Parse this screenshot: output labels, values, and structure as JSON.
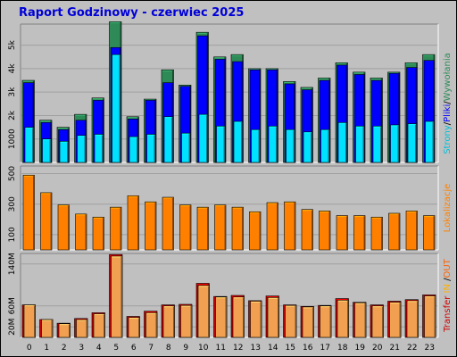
{
  "title": "Raport Godzinowy -  czerwiec 2025",
  "colors": {
    "page_bg": "#c0c0c0",
    "title": "#0000d8",
    "hits": "#2e8b57",
    "files": "#0000ff",
    "pages": "#00e0ff",
    "visits": "#ff8000",
    "kb_in": "#ffb000",
    "kb_out": "#ff6000",
    "transfer": "#cc0000"
  },
  "legends": {
    "top": [
      {
        "text": "Strony",
        "color": "#00c0d8"
      },
      {
        "text": "/",
        "color": "#000000"
      },
      {
        "text": "Pliki",
        "color": "#0000ff"
      },
      {
        "text": "/",
        "color": "#000000"
      },
      {
        "text": "Wywołania",
        "color": "#2e8b57"
      }
    ],
    "middle": [
      {
        "text": "Lokalizacje",
        "color": "#ff8000"
      }
    ],
    "bottom": [
      {
        "text": "Transfer",
        "color": "#cc0000"
      },
      {
        "text": " IN ",
        "color": "#ffb000"
      },
      {
        "text": "/",
        "color": "#000000"
      },
      {
        "text": "OUT",
        "color": "#ff6000"
      }
    ]
  },
  "chart_data": [
    {
      "type": "bar",
      "panel": "hits_files_pages",
      "categories": [
        "0",
        "1",
        "2",
        "3",
        "4",
        "5",
        "6",
        "7",
        "8",
        "9",
        "10",
        "11",
        "12",
        "13",
        "14",
        "15",
        "16",
        "17",
        "18",
        "19",
        "20",
        "21",
        "22",
        "23"
      ],
      "ytick_labels": [
        "1000",
        "2k",
        "3k",
        "4k",
        "5k"
      ],
      "ytick_values": [
        1000,
        2000,
        3000,
        4000,
        5000
      ],
      "ylim": [
        0,
        5900
      ],
      "series": [
        {
          "name": "Wywołania",
          "values": [
            3500,
            1800,
            1500,
            2050,
            2750,
            6000,
            1950,
            2700,
            3950,
            3300,
            5550,
            4500,
            4600,
            4000,
            4000,
            3450,
            3200,
            3600,
            4250,
            3850,
            3600,
            3850,
            4250,
            4600
          ]
        },
        {
          "name": "Pliki",
          "values": [
            3400,
            1700,
            1400,
            1800,
            2650,
            4900,
            1850,
            2650,
            3400,
            3250,
            5400,
            4400,
            4300,
            3950,
            3950,
            3350,
            3100,
            3500,
            4150,
            3750,
            3500,
            3800,
            4050,
            4350
          ]
        },
        {
          "name": "Strony",
          "values": [
            1500,
            1000,
            900,
            1150,
            1200,
            4600,
            1100,
            1200,
            1950,
            1250,
            2050,
            1550,
            1750,
            1400,
            1550,
            1400,
            1300,
            1400,
            1700,
            1550,
            1550,
            1600,
            1650,
            1750
          ]
        }
      ]
    },
    {
      "type": "bar",
      "panel": "visits",
      "categories": [
        "0",
        "1",
        "2",
        "3",
        "4",
        "5",
        "6",
        "7",
        "8",
        "9",
        "10",
        "11",
        "12",
        "13",
        "14",
        "15",
        "16",
        "17",
        "18",
        "19",
        "20",
        "21",
        "22",
        "23"
      ],
      "ytick_labels": [
        "100",
        "300",
        "500"
      ],
      "ytick_values": [
        100,
        300,
        500
      ],
      "ylim": [
        0,
        550
      ],
      "series": [
        {
          "name": "Lokalizacje",
          "values": [
            490,
            375,
            295,
            235,
            215,
            280,
            355,
            315,
            345,
            295,
            280,
            295,
            280,
            250,
            310,
            315,
            265,
            255,
            225,
            225,
            215,
            240,
            255,
            225
          ]
        }
      ]
    },
    {
      "type": "bar",
      "panel": "transfer",
      "categories": [
        "0",
        "1",
        "2",
        "3",
        "4",
        "5",
        "6",
        "7",
        "8",
        "9",
        "10",
        "11",
        "12",
        "13",
        "14",
        "15",
        "16",
        "17",
        "18",
        "19",
        "20",
        "21",
        "22",
        "23"
      ],
      "ytick_labels": [
        "20M",
        "60M",
        "140M"
      ],
      "ytick_values": [
        20,
        60,
        140
      ],
      "ylabel_unit": "M",
      "ylim": [
        0,
        160
      ],
      "series": [
        {
          "name": "Transfer",
          "values": [
            62,
            34,
            27,
            36,
            47,
            158,
            40,
            50,
            62,
            63,
            103,
            78,
            80,
            70,
            79,
            62,
            59,
            61,
            74,
            67,
            62,
            69,
            72,
            81
          ]
        },
        {
          "name": "IN",
          "values": [
            0,
            0,
            0,
            0,
            0,
            0,
            0,
            0,
            0,
            0,
            0,
            0,
            0,
            0,
            0,
            0,
            0,
            0,
            0,
            0,
            0,
            0,
            0,
            0
          ]
        },
        {
          "name": "OUT",
          "values": [
            62,
            34,
            26,
            34,
            45,
            155,
            38,
            47,
            60,
            61,
            99,
            77,
            77,
            69,
            76,
            61,
            58,
            60,
            71,
            66,
            60,
            67,
            70,
            79
          ]
        }
      ]
    }
  ]
}
